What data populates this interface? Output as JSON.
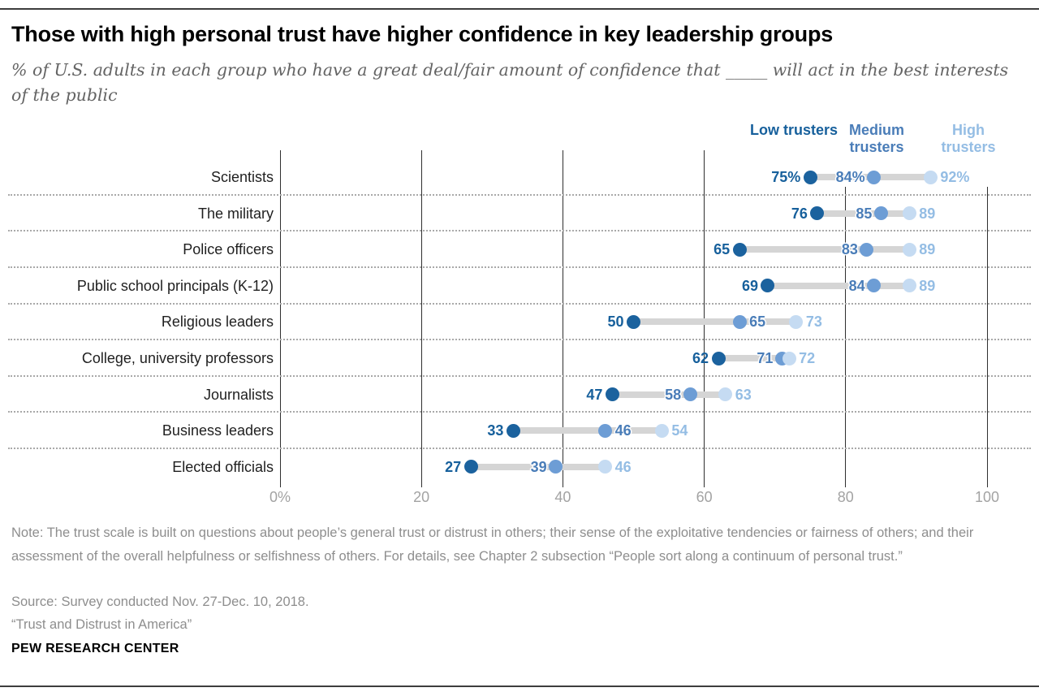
{
  "header": {
    "title": "Those with high personal trust have higher confidence in key leadership groups",
    "subtitle": "% of U.S. adults in each group who have a great deal/fair amount of confidence that _____ will act in the best interests of the public"
  },
  "legend": [
    {
      "label": "Low trusters",
      "color": "#17609c"
    },
    {
      "label": "Medium trusters",
      "color": "#4a7db8"
    },
    {
      "label": "High trusters",
      "color": "#94bde4"
    }
  ],
  "chart_data": {
    "type": "scatter",
    "variant": "horizontal dumbbell dot plot",
    "title": "Those with high personal trust have higher confidence in key leadership groups",
    "categories": [
      "Scientists",
      "The military",
      "Police officers",
      "Public school principals (K-12)",
      "Religious leaders",
      "College, university professors",
      "Journalists",
      "Business leaders",
      "Elected officials"
    ],
    "series": [
      {
        "name": "Low trusters",
        "dot_color": "#1b629e",
        "text_color": "#17609c",
        "values": [
          75,
          76,
          65,
          69,
          50,
          62,
          47,
          33,
          27
        ],
        "labels": [
          "75%",
          "76",
          "65",
          "69",
          "50",
          "62",
          "47",
          "33",
          "27"
        ]
      },
      {
        "name": "Medium trusters",
        "dot_color": "#6d9dd5",
        "text_color": "#4a7db8",
        "values": [
          84,
          85,
          83,
          84,
          65,
          71,
          58,
          46,
          39
        ],
        "labels": [
          "84%",
          "85",
          "83",
          "84",
          "65",
          "71",
          "58",
          "46",
          "39"
        ],
        "label_side": [
          "left",
          "left",
          "left",
          "left",
          "right",
          "left",
          "left",
          "right",
          "left"
        ]
      },
      {
        "name": "High trusters",
        "dot_color": "#c5dbf2",
        "text_color": "#94bde4",
        "values": [
          92,
          89,
          89,
          89,
          73,
          72,
          63,
          54,
          46
        ],
        "labels": [
          "92%",
          "89",
          "89",
          "89",
          "73",
          "72",
          "63",
          "54",
          "46"
        ]
      }
    ],
    "connector_color": "#d5d5d5",
    "xlim": [
      0,
      100
    ],
    "xticks": [
      {
        "value": 0,
        "label": "0%"
      },
      {
        "value": 20,
        "label": "20"
      },
      {
        "value": 40,
        "label": "40"
      },
      {
        "value": 60,
        "label": "60"
      },
      {
        "value": 80,
        "label": "80"
      },
      {
        "value": 100,
        "label": "100"
      }
    ],
    "legend_position": "top-right",
    "grid": "solid vertical lines at ticks; dotted horizontal row separators"
  },
  "footer": {
    "note": "Note: The trust scale is built on questions about people’s general trust or distrust in others; their sense of the exploitative tendencies or fairness of others; and their assessment of the overall helpfulness or selfishness of others. For details, see Chapter 2 subsection “People sort along a continuum of personal trust.”",
    "source": "Source: Survey conducted Nov. 27-Dec. 10, 2018.",
    "attribution": "“Trust and Distrust in America”",
    "brand": "PEW RESEARCH CENTER"
  }
}
